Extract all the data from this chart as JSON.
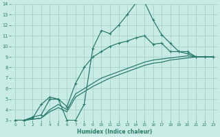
{
  "xlabel": "Humidex (Indice chaleur)",
  "x_values": [
    0,
    1,
    2,
    3,
    4,
    5,
    6,
    7,
    8,
    9,
    10,
    11,
    12,
    13,
    14,
    15,
    16,
    17,
    18,
    19,
    20,
    21,
    22,
    23
  ],
  "line1": [
    3,
    3,
    3.3,
    3.5,
    5,
    5,
    3,
    3,
    4.5,
    9.8,
    11.5,
    11.2,
    12,
    13,
    14.1,
    14.2,
    12.5,
    11.1,
    10.3,
    9.5,
    9.3,
    9,
    9,
    9
  ],
  "line2": [
    3,
    3,
    3.2,
    4.5,
    5.2,
    5.0,
    4.3,
    6.5,
    8.0,
    9.0,
    9.5,
    10.0,
    10.3,
    10.5,
    10.8,
    11.0,
    10.2,
    10.3,
    9.5,
    9.5,
    9.5,
    9,
    9,
    9
  ],
  "line3": [
    3,
    3,
    3.1,
    3.2,
    4.0,
    4.5,
    4.0,
    5.5,
    6.0,
    6.5,
    7.0,
    7.3,
    7.6,
    7.9,
    8.2,
    8.5,
    8.7,
    8.8,
    8.9,
    9.0,
    9.1,
    9,
    9,
    9
  ],
  "line4": [
    3,
    3,
    3.1,
    3.2,
    3.8,
    4.2,
    3.8,
    5.2,
    5.7,
    6.2,
    6.6,
    7.0,
    7.3,
    7.6,
    7.9,
    8.2,
    8.4,
    8.5,
    8.7,
    8.8,
    8.9,
    9,
    9,
    9
  ],
  "ylim_min": 3,
  "ylim_max": 14,
  "yticks": [
    3,
    4,
    5,
    6,
    7,
    8,
    9,
    10,
    11,
    12,
    13,
    14
  ],
  "xticks": [
    0,
    1,
    2,
    3,
    4,
    5,
    6,
    7,
    8,
    9,
    10,
    11,
    12,
    13,
    14,
    15,
    16,
    17,
    18,
    19,
    20,
    21,
    22,
    23
  ],
  "line_color": "#2a7a6a",
  "bg_color": "#c8ebe6",
  "grid_color": "#a0ccc6",
  "title_color": "#2a7a6a"
}
